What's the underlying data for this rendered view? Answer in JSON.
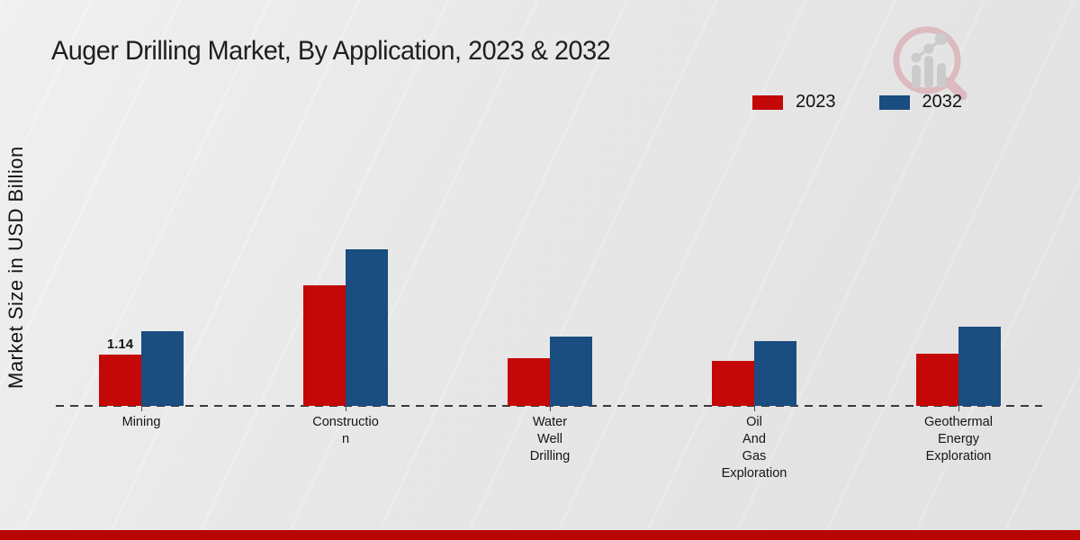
{
  "title": "Auger Drilling Market, By Application, 2023 & 2032",
  "y_axis_label": "Market Size in USD Billion",
  "legend": {
    "items": [
      {
        "label": "2023",
        "color": "#c40707"
      },
      {
        "label": "2032",
        "color": "#1a4d80"
      }
    ]
  },
  "colors": {
    "series_2023": "#c40707",
    "series_2032": "#1a4d80",
    "baseline": "#3a3a3a",
    "footer_strip": "#b90404",
    "background": "#ebebeb",
    "title_text": "#1e1e1e"
  },
  "icons": {
    "logo": "magnifier-bar-chart-logo"
  },
  "chart_data": {
    "type": "bar",
    "title": "Auger Drilling Market, By Application, 2023 & 2032",
    "xlabel": "",
    "ylabel": "Market Size in USD Billion",
    "categories": [
      "Mining",
      "Construction",
      "Water Well Drilling",
      "Oil And Gas Exploration",
      "Geothermal Energy Exploration"
    ],
    "category_label_lines": [
      [
        "Mining"
      ],
      [
        "Constructio",
        "n"
      ],
      [
        "Water",
        "Well",
        "Drilling"
      ],
      [
        "Oil",
        "And",
        "Gas",
        "Exploration"
      ],
      [
        "Geothermal",
        "Energy",
        "Exploration"
      ]
    ],
    "series": [
      {
        "name": "2023",
        "color": "#c40707",
        "values": [
          1.14,
          2.68,
          1.06,
          1.0,
          1.16
        ],
        "data_labels": [
          "1.14",
          null,
          null,
          null,
          null
        ]
      },
      {
        "name": "2032",
        "color": "#1a4d80",
        "values": [
          1.66,
          3.48,
          1.54,
          1.44,
          1.76
        ],
        "data_labels": [
          null,
          null,
          null,
          null,
          null
        ]
      }
    ],
    "ylim": [
      0,
      4
    ],
    "grid": false,
    "legend_position": "top-right",
    "x_axis_style": "dashed-baseline-with-ticks",
    "annotations": [
      {
        "text": "1.14",
        "series": "2023",
        "category": "Mining"
      }
    ]
  }
}
